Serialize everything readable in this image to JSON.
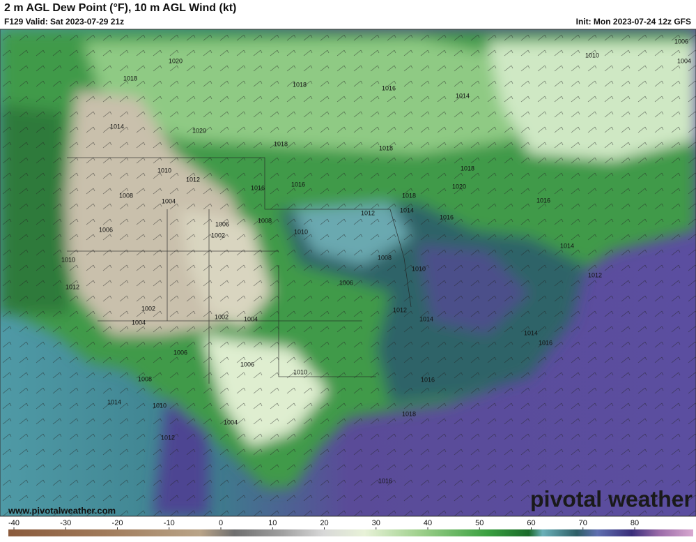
{
  "header": {
    "title": "2 m AGL Dew Point (°F), 10 m AGL Wind (kt)",
    "valid": "F129 Valid: Sat 2023-07-29 21z",
    "init": "Init: Mon 2023-07-24 12z GFS"
  },
  "isobar_labels": [
    1006,
    1010,
    1004,
    1020,
    1018,
    1018,
    1016,
    1014,
    1014,
    1020,
    1018,
    1018,
    1018,
    1010,
    1012,
    1016,
    1016,
    1020,
    1018,
    1008,
    1004,
    1016,
    1012,
    1014,
    1016,
    1006,
    1008,
    1006,
    1002,
    1010,
    1008,
    1010,
    1010,
    1014,
    1012,
    1006,
    1012,
    1012,
    1002,
    1014,
    1004,
    1002,
    1004,
    1014,
    1016,
    1006,
    1006,
    1010,
    1008,
    1016,
    1014,
    1010,
    1018,
    1004,
    1012,
    1016
  ],
  "footer": {
    "website": "www.pivotalweather.com",
    "logo": "pivotal weather"
  },
  "colorbar": {
    "ticks": [
      -40,
      -30,
      -20,
      -10,
      0,
      10,
      20,
      30,
      40,
      50,
      60,
      70,
      80
    ]
  }
}
